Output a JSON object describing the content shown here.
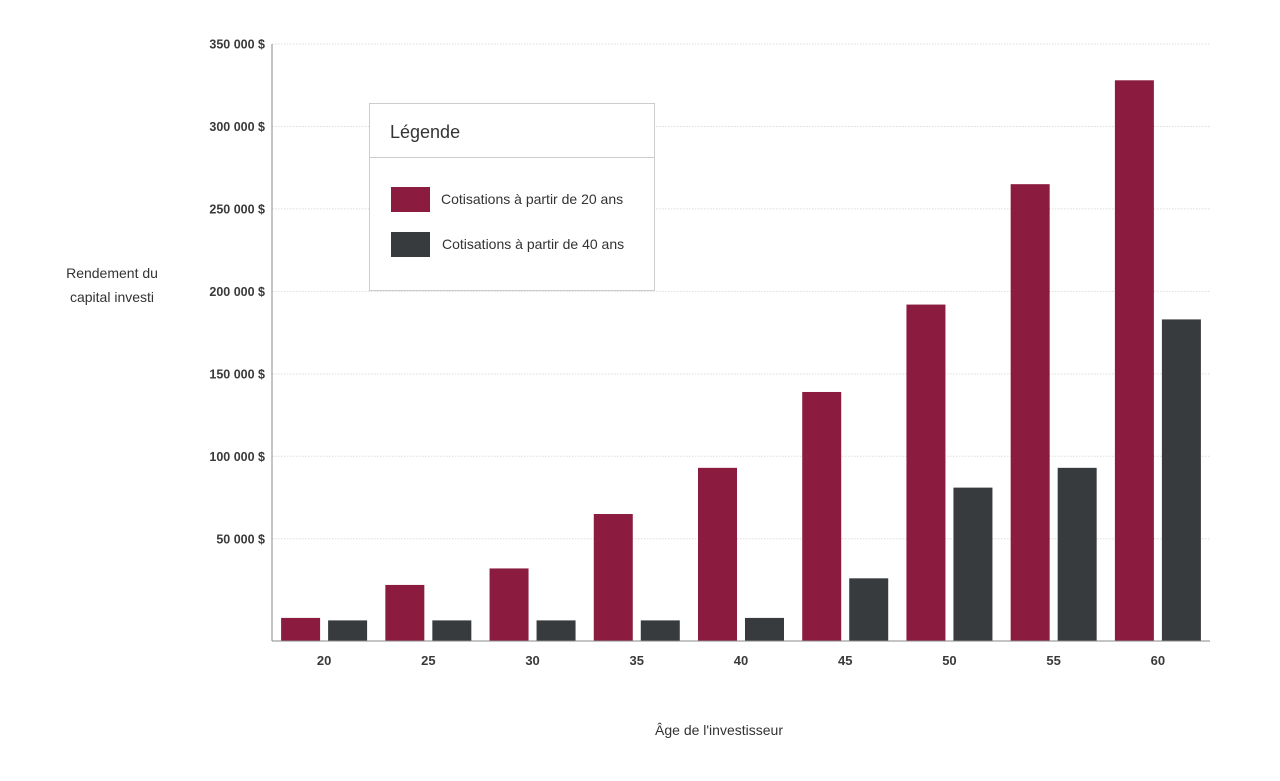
{
  "chart_data": {
    "type": "bar",
    "title": "",
    "xlabel": "Âge de l'investisseur",
    "ylabel": [
      "Rendement du",
      "capital investi"
    ],
    "categories": [
      "20",
      "25",
      "30",
      "35",
      "40",
      "45",
      "50",
      "55",
      "60"
    ],
    "series": [
      {
        "name": "Cotisations à partir de 20 ans",
        "color": "#8b1c40",
        "values": [
          2000,
          22000,
          32000,
          65000,
          93000,
          139000,
          192000,
          265000,
          328000
        ]
      },
      {
        "name": "Cotisations à partir de 40 ans",
        "color": "#373b3e",
        "values": [
          500,
          500,
          500,
          500,
          2000,
          26000,
          81000,
          93000,
          183000
        ]
      }
    ],
    "yticks": [
      50000,
      100000,
      150000,
      200000,
      250000,
      300000,
      350000
    ],
    "ytick_labels": [
      "50 000 $",
      "100 000 $",
      "150 000 $",
      "200 000 $",
      "250 000 $",
      "300 000 $",
      "350 000 $"
    ],
    "ylim": [
      -12000,
      350000
    ],
    "grid": true,
    "legend": {
      "title": "Légende",
      "position": "top-left"
    },
    "colors": {
      "gridline": "#dddddd",
      "axis": "#888888"
    }
  }
}
